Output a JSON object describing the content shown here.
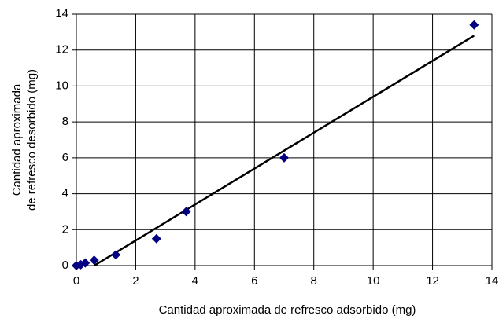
{
  "chart_data": {
    "type": "scatter",
    "xlabel": "Cantidad aproximada de refresco adsorbido (mg)",
    "ylabel": [
      "Cantidad aproximada",
      "de refresco desorbido (mg)"
    ],
    "x": [
      0,
      0.15,
      0.3,
      0.6,
      1.33,
      2.7,
      3.7,
      7.0,
      13.4
    ],
    "values": [
      0,
      0.05,
      0.15,
      0.3,
      0.6,
      1.5,
      3.0,
      6.0,
      13.4
    ],
    "color": "#000080",
    "trendline": {
      "x": [
        0.6,
        13.4
      ],
      "values": [
        0,
        12.8
      ],
      "color": "#000000"
    },
    "xlim": [
      0,
      14
    ],
    "xticks": [
      0,
      2,
      4,
      6,
      8,
      10,
      12,
      14
    ],
    "ylim": [
      0,
      14
    ],
    "yticks": [
      0,
      2,
      4,
      6,
      8,
      10,
      12,
      14
    ],
    "grid": true
  }
}
